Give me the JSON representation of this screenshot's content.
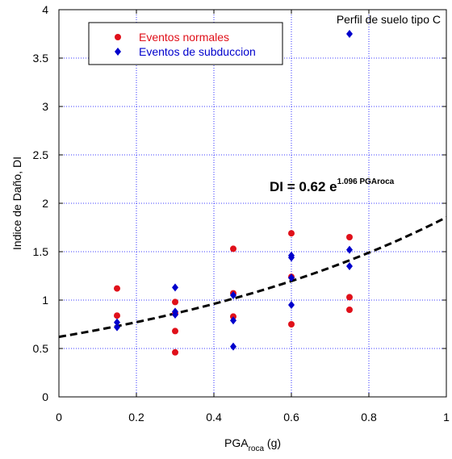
{
  "chart_data": {
    "type": "scatter",
    "title": "",
    "xlabel_main": "PGA",
    "xlabel_sub": "roca",
    "xlabel_unit": " (g)",
    "ylabel": "Indice de Daño, DI",
    "xlim": [
      0,
      1
    ],
    "ylim": [
      0,
      4
    ],
    "xticks": [
      0,
      0.2,
      0.4,
      0.6,
      0.8,
      1
    ],
    "xtick_labels": [
      "0",
      "0.2",
      "0.4",
      "0.6",
      "0.8",
      "1"
    ],
    "yticks": [
      0,
      0.5,
      1,
      1.5,
      2,
      2.5,
      3,
      3.5,
      4
    ],
    "ytick_labels": [
      "0",
      "0.5",
      "1",
      "1.5",
      "2",
      "2.5",
      "3",
      "3.5",
      "4"
    ],
    "grid": true,
    "legend_position": "top-left",
    "series": [
      {
        "name": "Eventos normales",
        "marker": "circle",
        "color": "#e0101a",
        "x": [
          0.15,
          0.15,
          0.3,
          0.3,
          0.3,
          0.3,
          0.45,
          0.45,
          0.45,
          0.6,
          0.6,
          0.6,
          0.75,
          0.75,
          0.75
        ],
        "y": [
          1.12,
          0.84,
          0.98,
          0.86,
          0.68,
          0.46,
          1.53,
          1.07,
          0.83,
          1.69,
          1.24,
          0.75,
          1.65,
          1.03,
          0.9
        ]
      },
      {
        "name": "Eventos de subduccion",
        "marker": "diamond",
        "color": "#0000cc",
        "x": [
          0.15,
          0.15,
          0.3,
          0.3,
          0.3,
          0.45,
          0.45,
          0.45,
          0.6,
          0.6,
          0.6,
          0.6,
          0.75,
          0.75,
          0.75
        ],
        "y": [
          0.77,
          0.72,
          1.13,
          0.88,
          0.85,
          1.05,
          0.79,
          0.52,
          1.46,
          1.44,
          1.23,
          0.95,
          3.75,
          1.52,
          1.35
        ]
      }
    ],
    "fit": {
      "a": 0.62,
      "b": 1.096,
      "label_main": "DI = 0.62 e",
      "label_sup": "1.096 PGAroca",
      "style": "dashed",
      "color": "#000000"
    },
    "annotation": "Perfil de suelo tipo C"
  }
}
